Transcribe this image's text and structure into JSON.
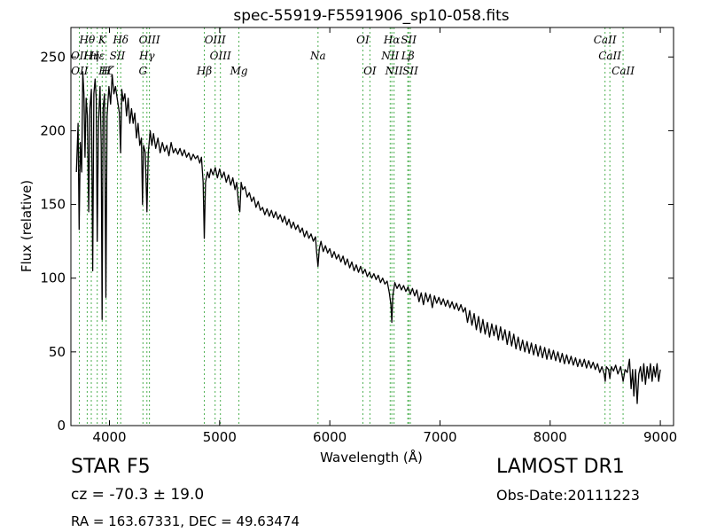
{
  "header": {
    "object_type": "STAR   F5",
    "survey": "LAMOST DR1",
    "cz": "cz = -70.3 ± 19.0",
    "obs_date": "Obs-Date:20111223",
    "radec": "RA = 163.67331, DEC = 49.63474"
  },
  "chart_data": {
    "type": "line",
    "title": "spec-55919-F5591906_sp10-058.fits",
    "xlabel": "Wavelength (Å)",
    "ylabel": "Flux (relative)",
    "xlim": [
      3650,
      9120
    ],
    "ylim": [
      0,
      270
    ],
    "xticks": [
      4000,
      5000,
      6000,
      7000,
      8000,
      9000
    ],
    "yticks": [
      0,
      50,
      100,
      150,
      200,
      250
    ],
    "grid": false,
    "line_color": "#000000",
    "marker_color": "#4caf50",
    "spectrum": [
      [
        3700,
        172
      ],
      [
        3715,
        205
      ],
      [
        3725,
        133
      ],
      [
        3735,
        192
      ],
      [
        3748,
        172
      ],
      [
        3758,
        240
      ],
      [
        3768,
        225
      ],
      [
        3778,
        182
      ],
      [
        3788,
        222
      ],
      [
        3800,
        210
      ],
      [
        3812,
        145
      ],
      [
        3822,
        215
      ],
      [
        3836,
        228
      ],
      [
        3848,
        105
      ],
      [
        3858,
        225
      ],
      [
        3870,
        235
      ],
      [
        3880,
        222
      ],
      [
        3889,
        125
      ],
      [
        3900,
        205
      ],
      [
        3915,
        230
      ],
      [
        3925,
        190
      ],
      [
        3933,
        72
      ],
      [
        3942,
        215
      ],
      [
        3955,
        225
      ],
      [
        3968,
        87
      ],
      [
        3978,
        210
      ],
      [
        3995,
        230
      ],
      [
        4010,
        218
      ],
      [
        4025,
        238
      ],
      [
        4040,
        225
      ],
      [
        4055,
        230
      ],
      [
        4070,
        222
      ],
      [
        4090,
        212
      ],
      [
        4101,
        185
      ],
      [
        4112,
        228
      ],
      [
        4125,
        220
      ],
      [
        4140,
        225
      ],
      [
        4155,
        210
      ],
      [
        4170,
        222
      ],
      [
        4185,
        205
      ],
      [
        4200,
        215
      ],
      [
        4215,
        205
      ],
      [
        4230,
        212
      ],
      [
        4245,
        195
      ],
      [
        4260,
        205
      ],
      [
        4275,
        190
      ],
      [
        4290,
        195
      ],
      [
        4300,
        150
      ],
      [
        4310,
        190
      ],
      [
        4325,
        185
      ],
      [
        4340,
        145
      ],
      [
        4352,
        185
      ],
      [
        4370,
        200
      ],
      [
        4385,
        190
      ],
      [
        4400,
        198
      ],
      [
        4420,
        188
      ],
      [
        4440,
        195
      ],
      [
        4460,
        185
      ],
      [
        4480,
        192
      ],
      [
        4500,
        186
      ],
      [
        4520,
        190
      ],
      [
        4540,
        183
      ],
      [
        4560,
        192
      ],
      [
        4580,
        185
      ],
      [
        4600,
        188
      ],
      [
        4620,
        184
      ],
      [
        4640,
        188
      ],
      [
        4660,
        183
      ],
      [
        4680,
        187
      ],
      [
        4700,
        182
      ],
      [
        4720,
        185
      ],
      [
        4740,
        180
      ],
      [
        4760,
        184
      ],
      [
        4780,
        181
      ],
      [
        4800,
        183
      ],
      [
        4820,
        178
      ],
      [
        4835,
        182
      ],
      [
        4850,
        165
      ],
      [
        4861,
        127
      ],
      [
        4872,
        165
      ],
      [
        4890,
        172
      ],
      [
        4905,
        168
      ],
      [
        4920,
        174
      ],
      [
        4940,
        170
      ],
      [
        4960,
        175
      ],
      [
        4980,
        168
      ],
      [
        5000,
        174
      ],
      [
        5020,
        168
      ],
      [
        5040,
        172
      ],
      [
        5060,
        165
      ],
      [
        5080,
        170
      ],
      [
        5100,
        163
      ],
      [
        5120,
        168
      ],
      [
        5140,
        160
      ],
      [
        5155,
        165
      ],
      [
        5172,
        150
      ],
      [
        5183,
        145
      ],
      [
        5195,
        165
      ],
      [
        5210,
        160
      ],
      [
        5230,
        162
      ],
      [
        5250,
        155
      ],
      [
        5270,
        158
      ],
      [
        5290,
        152
      ],
      [
        5310,
        155
      ],
      [
        5330,
        148
      ],
      [
        5350,
        152
      ],
      [
        5370,
        146
      ],
      [
        5390,
        148
      ],
      [
        5410,
        143
      ],
      [
        5430,
        147
      ],
      [
        5450,
        142
      ],
      [
        5470,
        146
      ],
      [
        5490,
        141
      ],
      [
        5510,
        145
      ],
      [
        5530,
        140
      ],
      [
        5550,
        143
      ],
      [
        5570,
        138
      ],
      [
        5590,
        142
      ],
      [
        5610,
        136
      ],
      [
        5630,
        140
      ],
      [
        5650,
        134
      ],
      [
        5670,
        138
      ],
      [
        5690,
        133
      ],
      [
        5710,
        136
      ],
      [
        5730,
        131
      ],
      [
        5750,
        134
      ],
      [
        5770,
        128
      ],
      [
        5790,
        132
      ],
      [
        5810,
        127
      ],
      [
        5830,
        130
      ],
      [
        5850,
        125
      ],
      [
        5870,
        128
      ],
      [
        5880,
        118
      ],
      [
        5893,
        108
      ],
      [
        5905,
        120
      ],
      [
        5920,
        125
      ],
      [
        5940,
        118
      ],
      [
        5960,
        122
      ],
      [
        5980,
        117
      ],
      [
        6000,
        120
      ],
      [
        6020,
        114
      ],
      [
        6040,
        118
      ],
      [
        6060,
        113
      ],
      [
        6080,
        116
      ],
      [
        6100,
        111
      ],
      [
        6120,
        115
      ],
      [
        6140,
        109
      ],
      [
        6160,
        113
      ],
      [
        6180,
        107
      ],
      [
        6200,
        111
      ],
      [
        6220,
        105
      ],
      [
        6240,
        109
      ],
      [
        6260,
        104
      ],
      [
        6280,
        108
      ],
      [
        6300,
        103
      ],
      [
        6320,
        106
      ],
      [
        6340,
        101
      ],
      [
        6360,
        104
      ],
      [
        6380,
        100
      ],
      [
        6400,
        103
      ],
      [
        6420,
        99
      ],
      [
        6440,
        102
      ],
      [
        6460,
        97
      ],
      [
        6480,
        100
      ],
      [
        6500,
        96
      ],
      [
        6520,
        98
      ],
      [
        6540,
        90
      ],
      [
        6555,
        82
      ],
      [
        6563,
        70
      ],
      [
        6572,
        88
      ],
      [
        6590,
        97
      ],
      [
        6610,
        93
      ],
      [
        6630,
        96
      ],
      [
        6650,
        92
      ],
      [
        6670,
        95
      ],
      [
        6690,
        91
      ],
      [
        6710,
        94
      ],
      [
        6730,
        89
      ],
      [
        6750,
        93
      ],
      [
        6770,
        88
      ],
      [
        6790,
        92
      ],
      [
        6810,
        84
      ],
      [
        6830,
        90
      ],
      [
        6850,
        82
      ],
      [
        6870,
        90
      ],
      [
        6890,
        84
      ],
      [
        6910,
        89
      ],
      [
        6930,
        80
      ],
      [
        6950,
        88
      ],
      [
        6970,
        83
      ],
      [
        6990,
        87
      ],
      [
        7010,
        82
      ],
      [
        7030,
        86
      ],
      [
        7050,
        81
      ],
      [
        7070,
        85
      ],
      [
        7090,
        80
      ],
      [
        7110,
        84
      ],
      [
        7130,
        79
      ],
      [
        7150,
        83
      ],
      [
        7170,
        78
      ],
      [
        7190,
        82
      ],
      [
        7210,
        77
      ],
      [
        7230,
        80
      ],
      [
        7250,
        70
      ],
      [
        7270,
        78
      ],
      [
        7290,
        68
      ],
      [
        7310,
        76
      ],
      [
        7330,
        65
      ],
      [
        7350,
        74
      ],
      [
        7370,
        63
      ],
      [
        7390,
        72
      ],
      [
        7410,
        62
      ],
      [
        7430,
        70
      ],
      [
        7450,
        60
      ],
      [
        7470,
        69
      ],
      [
        7490,
        61
      ],
      [
        7510,
        68
      ],
      [
        7530,
        58
      ],
      [
        7550,
        67
      ],
      [
        7570,
        58
      ],
      [
        7590,
        65
      ],
      [
        7610,
        55
      ],
      [
        7630,
        64
      ],
      [
        7650,
        54
      ],
      [
        7670,
        62
      ],
      [
        7690,
        52
      ],
      [
        7710,
        60
      ],
      [
        7730,
        51
      ],
      [
        7750,
        58
      ],
      [
        7770,
        50
      ],
      [
        7790,
        57
      ],
      [
        7810,
        49
      ],
      [
        7830,
        56
      ],
      [
        7850,
        48
      ],
      [
        7870,
        55
      ],
      [
        7890,
        47
      ],
      [
        7910,
        54
      ],
      [
        7930,
        46
      ],
      [
        7950,
        53
      ],
      [
        7970,
        45
      ],
      [
        7990,
        52
      ],
      [
        8010,
        45
      ],
      [
        8030,
        51
      ],
      [
        8050,
        44
      ],
      [
        8070,
        50
      ],
      [
        8090,
        43
      ],
      [
        8110,
        49
      ],
      [
        8130,
        42
      ],
      [
        8150,
        48
      ],
      [
        8170,
        42
      ],
      [
        8190,
        47
      ],
      [
        8210,
        41
      ],
      [
        8230,
        46
      ],
      [
        8250,
        40
      ],
      [
        8270,
        45
      ],
      [
        8290,
        40
      ],
      [
        8310,
        45
      ],
      [
        8330,
        39
      ],
      [
        8350,
        44
      ],
      [
        8370,
        39
      ],
      [
        8390,
        43
      ],
      [
        8410,
        38
      ],
      [
        8430,
        42
      ],
      [
        8450,
        36
      ],
      [
        8470,
        40
      ],
      [
        8490,
        35
      ],
      [
        8500,
        30
      ],
      [
        8510,
        40
      ],
      [
        8530,
        38
      ],
      [
        8542,
        32
      ],
      [
        8555,
        40
      ],
      [
        8575,
        37
      ],
      [
        8595,
        41
      ],
      [
        8615,
        35
      ],
      [
        8640,
        40
      ],
      [
        8662,
        30
      ],
      [
        8680,
        38
      ],
      [
        8700,
        36
      ],
      [
        8720,
        45
      ],
      [
        8735,
        25
      ],
      [
        8748,
        38
      ],
      [
        8760,
        20
      ],
      [
        8775,
        38
      ],
      [
        8790,
        15
      ],
      [
        8805,
        35
      ],
      [
        8820,
        40
      ],
      [
        8835,
        30
      ],
      [
        8850,
        42
      ],
      [
        8865,
        28
      ],
      [
        8880,
        40
      ],
      [
        8895,
        32
      ],
      [
        8910,
        42
      ],
      [
        8925,
        30
      ],
      [
        8940,
        40
      ],
      [
        8955,
        33
      ],
      [
        8970,
        42
      ],
      [
        8985,
        30
      ],
      [
        9000,
        38
      ]
    ],
    "lines": [
      {
        "label": "Hθ",
        "x": 3798,
        "row": 0
      },
      {
        "label": "K",
        "x": 3934,
        "row": 0
      },
      {
        "label": "Hδ",
        "x": 4102,
        "row": 0
      },
      {
        "label": "OIII",
        "x": 4363,
        "row": 0
      },
      {
        "label": "OIII",
        "x": 4959,
        "row": 0
      },
      {
        "label": "OI",
        "x": 6300,
        "row": 0
      },
      {
        "label": "Hα",
        "x": 6563,
        "row": 0
      },
      {
        "label": "SII",
        "x": 6716,
        "row": 0
      },
      {
        "label": "CaII",
        "x": 8498,
        "row": 0
      },
      {
        "label": "OII",
        "x": 3727,
        "row": 1
      },
      {
        "label": "Hη",
        "x": 3835,
        "row": 1
      },
      {
        "label": "Hε",
        "x": 3889,
        "row": 1
      },
      {
        "label": "SII",
        "x": 4072,
        "row": 1
      },
      {
        "label": "Hγ",
        "x": 4340,
        "row": 1
      },
      {
        "label": "OIII",
        "x": 5007,
        "row": 1
      },
      {
        "label": "Na",
        "x": 5893,
        "row": 1
      },
      {
        "label": "NII",
        "x": 6548,
        "row": 1
      },
      {
        "label": "Lβ",
        "x": 6708,
        "row": 1
      },
      {
        "label": "CaII",
        "x": 8542,
        "row": 1
      },
      {
        "label": "OII",
        "x": 3729,
        "row": 2
      },
      {
        "label": "Hζ",
        "x": 3970,
        "row": 2
      },
      {
        "label": "Hβ",
        "x": 4861,
        "row": 2
      },
      {
        "label": "Mg",
        "x": 5175,
        "row": 2
      },
      {
        "label": "OI",
        "x": 6364,
        "row": 2
      },
      {
        "label": "NII",
        "x": 6583,
        "row": 2
      },
      {
        "label": "SII",
        "x": 6731,
        "row": 2
      },
      {
        "label": "CaII",
        "x": 8662,
        "row": 2
      },
      {
        "label": "H",
        "x": 3969,
        "row": 2
      },
      {
        "label": "G",
        "x": 4304,
        "row": 2
      }
    ]
  }
}
